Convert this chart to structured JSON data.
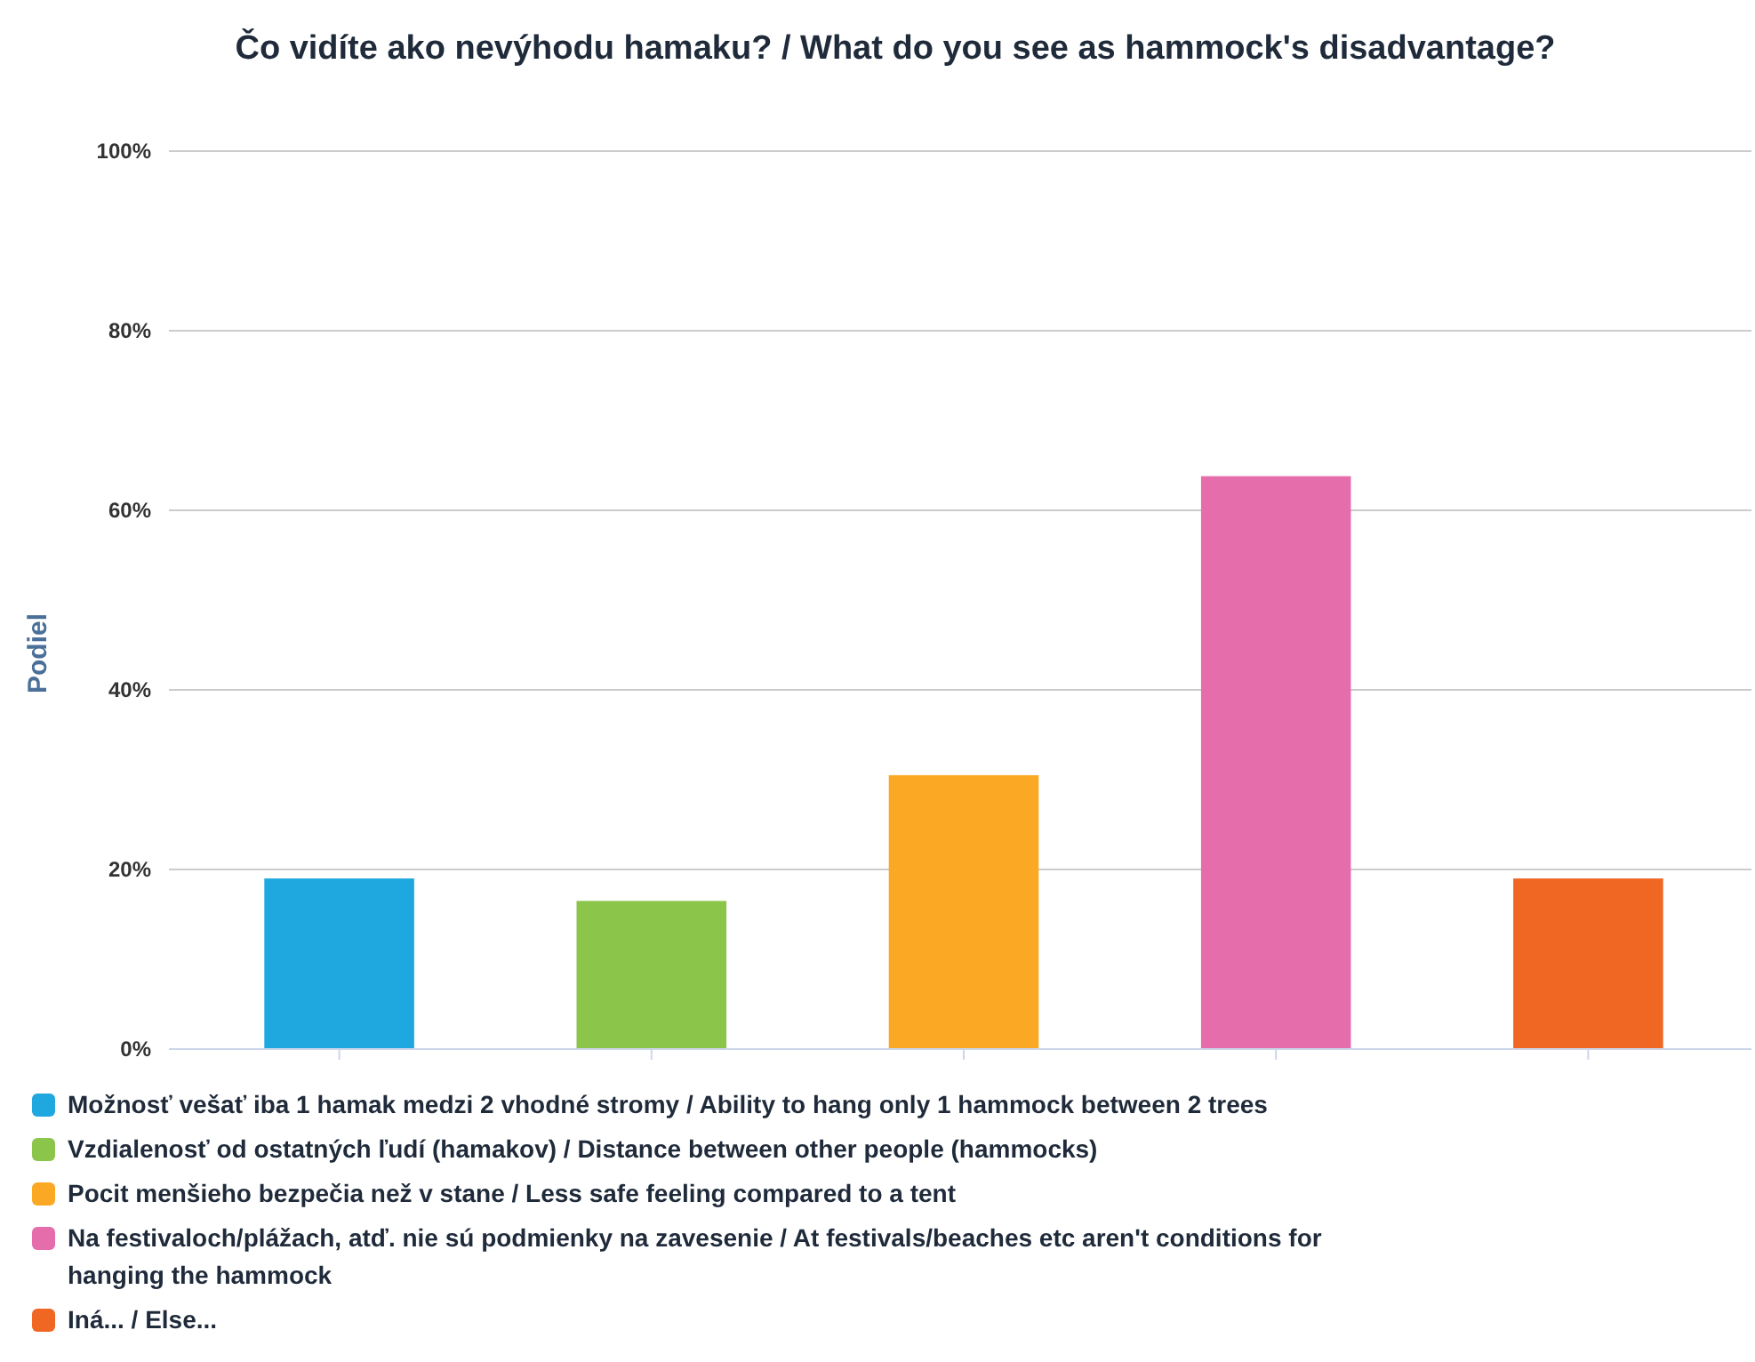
{
  "chart_data": {
    "type": "bar",
    "title": "Čo vidíte ako nevýhodu hamaku? / What do you see as hammock's disadvantage?",
    "ylabel": "Podiel",
    "categories": [
      null,
      null,
      null,
      null,
      null
    ],
    "series": [
      {
        "name": "Možnosť vešať iba 1 hamak medzi 2 vhodné stromy / Ability to hang only 1 hammock between 2 trees",
        "color": "#1fa8df",
        "values": [
          19,
          null,
          null,
          null,
          null
        ]
      },
      {
        "name": "Vzdialenosť od ostatných ľudí (hamakov) / Distance between other people (hammocks)",
        "color": "#8bc54a",
        "values": [
          null,
          16.5,
          null,
          null,
          null
        ]
      },
      {
        "name": "Pocit menšieho bezpečia než v stane / Less safe feeling compared to a tent",
        "color": "#fba824",
        "values": [
          null,
          null,
          30.5,
          null,
          null
        ]
      },
      {
        "name": "Na festivaloch/plážach, atď. nie sú podmienky na zavesenie / At festivals/beaches etc aren't conditions for hanging the hammock",
        "color": "#e66dab",
        "values": [
          null,
          null,
          null,
          63.8,
          null
        ]
      },
      {
        "name": "Iná... / Else...",
        "color": "#f06724",
        "values": [
          null,
          null,
          null,
          null,
          19
        ]
      }
    ],
    "ylim": [
      0,
      100
    ],
    "yticks": [
      {
        "value": 0,
        "label": "0%"
      },
      {
        "value": 20,
        "label": "20%"
      },
      {
        "value": 40,
        "label": "40%"
      },
      {
        "value": 60,
        "label": "60%"
      },
      {
        "value": 80,
        "label": "80%"
      },
      {
        "value": 100,
        "label": "100%"
      }
    ],
    "grid": "y",
    "legend": "bottom",
    "tick_labels": "y"
  }
}
